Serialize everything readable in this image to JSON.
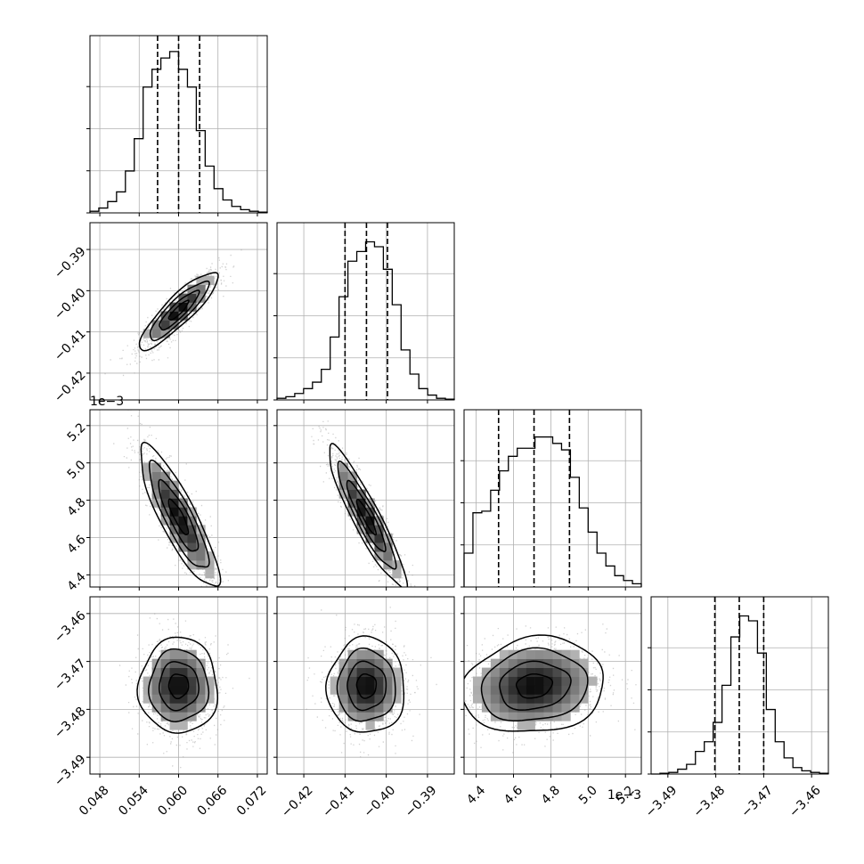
{
  "chart_data": {
    "type": "corner",
    "parameters": [
      {
        "name": "",
        "range": [
          0.0465,
          0.0735
        ],
        "ticks": [
          0.048,
          0.054,
          0.06,
          0.066,
          0.072
        ],
        "tick_labels": [
          "0.048",
          "0.054",
          "0.060",
          "0.066",
          "0.072"
        ],
        "quantiles": [
          0.0568,
          0.06,
          0.0632
        ],
        "mean": 0.06,
        "sd": 0.003
      },
      {
        "name": "",
        "range": [
          -0.4265,
          -0.3835
        ],
        "ticks": [
          -0.42,
          -0.41,
          -0.4,
          -0.39
        ],
        "tick_labels": [
          "−0.42",
          "−0.41",
          "−0.40",
          "−0.39"
        ],
        "quantiles": [
          -0.41,
          -0.4048,
          -0.3997
        ],
        "mean": -0.4048,
        "sd": 0.0047
      },
      {
        "name": "",
        "range": [
          4.335,
          5.285
        ],
        "ticks": [
          4.4,
          4.6,
          4.8,
          5.0,
          5.2
        ],
        "tick_labels": [
          "4.4",
          "4.6",
          "4.8",
          "5.0",
          "5.2"
        ],
        "offset": "1e−3",
        "quantiles": [
          4.52,
          4.71,
          4.9
        ],
        "mean": 4.71,
        "sd": 0.19
      },
      {
        "name": "",
        "range": [
          -3.4935,
          -3.4565
        ],
        "ticks": [
          -3.49,
          -3.48,
          -3.47,
          -3.46
        ],
        "tick_labels": [
          "−3.49",
          "−3.48",
          "−3.47",
          "−3.46"
        ],
        "quantiles": [
          -3.4802,
          -3.4751,
          -3.47
        ],
        "mean": -3.4751,
        "sd": 0.005
      }
    ],
    "correlations": [
      {
        "pair": [
          0,
          1
        ],
        "rho": 0.88
      },
      {
        "pair": [
          0,
          2
        ],
        "rho": -0.86
      },
      {
        "pair": [
          1,
          2
        ],
        "rho": -0.92
      },
      {
        "pair": [
          0,
          3
        ],
        "rho": 0.0
      },
      {
        "pair": [
          1,
          3
        ],
        "rho": 0.0
      },
      {
        "pair": [
          2,
          3
        ],
        "rho": 0.12
      }
    ],
    "histograms": [
      {
        "parameter": 0,
        "bins": 20,
        "counts": [
          0.01,
          0.03,
          0.07,
          0.13,
          0.26,
          0.46,
          0.78,
          0.89,
          0.96,
          1.0,
          0.89,
          0.78,
          0.51,
          0.29,
          0.15,
          0.08,
          0.04,
          0.02,
          0.01,
          0.005
        ]
      },
      {
        "parameter": 1,
        "bins": 20,
        "counts": [
          0.01,
          0.02,
          0.04,
          0.07,
          0.11,
          0.19,
          0.39,
          0.64,
          0.86,
          0.92,
          0.98,
          0.95,
          0.81,
          0.59,
          0.31,
          0.16,
          0.07,
          0.03,
          0.01,
          0.005
        ]
      },
      {
        "parameter": 2,
        "bins": 20,
        "counts": [
          0.21,
          0.46,
          0.47,
          0.6,
          0.72,
          0.81,
          0.86,
          0.86,
          0.93,
          0.93,
          0.89,
          0.85,
          0.68,
          0.49,
          0.34,
          0.21,
          0.13,
          0.07,
          0.04,
          0.02
        ]
      },
      {
        "parameter": 3,
        "bins": 20,
        "counts": [
          0.0,
          0.005,
          0.01,
          0.03,
          0.06,
          0.14,
          0.2,
          0.32,
          0.55,
          0.85,
          0.98,
          0.95,
          0.75,
          0.4,
          0.2,
          0.1,
          0.04,
          0.02,
          0.01,
          0.005
        ]
      }
    ],
    "contour_levels": [
      0.5,
      1.0,
      1.5,
      2.0
    ],
    "grid": true,
    "quantile_lines": "dashed"
  }
}
